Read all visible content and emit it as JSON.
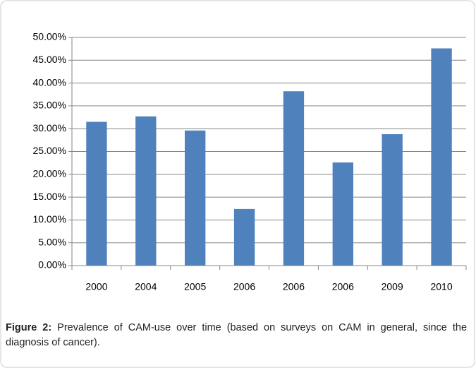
{
  "chart_data": {
    "type": "bar",
    "categories": [
      "2000",
      "2004",
      "2005",
      "2006",
      "2006",
      "2006",
      "2009",
      "2010"
    ],
    "values": [
      31.5,
      32.7,
      29.6,
      12.4,
      38.2,
      22.6,
      28.8,
      47.6
    ],
    "color": "#4f81bd",
    "ylim": [
      0,
      50
    ],
    "yticks": [
      {
        "value": 0,
        "label": "0.00%"
      },
      {
        "value": 5,
        "label": "5.00%"
      },
      {
        "value": 10,
        "label": "10.00%"
      },
      {
        "value": 15,
        "label": "15.00%"
      },
      {
        "value": 20,
        "label": "20.00%"
      },
      {
        "value": 25,
        "label": "25.00%"
      },
      {
        "value": 30,
        "label": "30.00%"
      },
      {
        "value": 35,
        "label": "35.00%"
      },
      {
        "value": 40,
        "label": "40.00%"
      },
      {
        "value": 45,
        "label": "45.00%"
      },
      {
        "value": 50,
        "label": "50.00%"
      }
    ],
    "grid": true
  },
  "caption": {
    "label": "Figure 2:",
    "text": "Prevalence of CAM-use over time (based on surveys on CAM in general, since the diagnosis of cancer)."
  }
}
